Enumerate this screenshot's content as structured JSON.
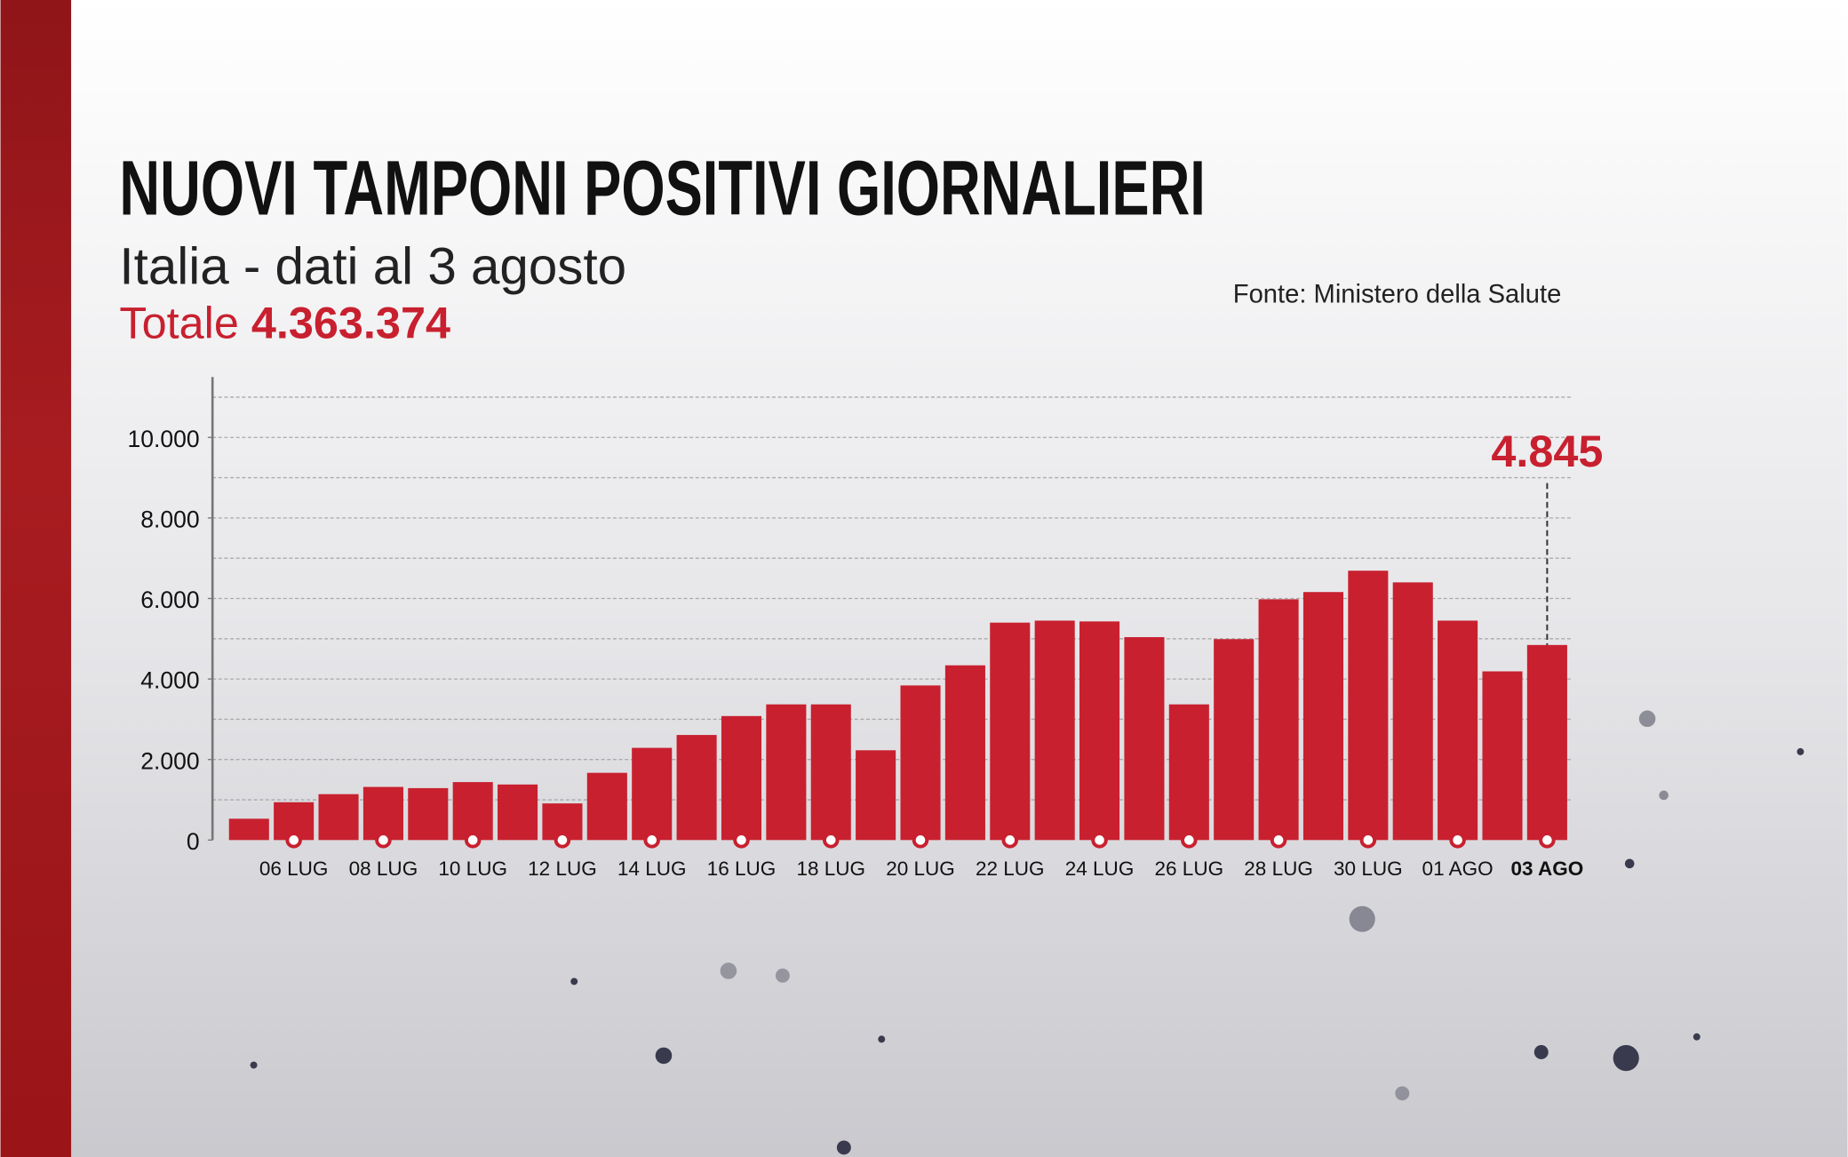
{
  "chart_data": {
    "type": "bar",
    "title": "NUOVI TAMPONI POSITIVI GIORNALIERI",
    "subtitle": "Italia - dati al 3 agosto",
    "total_label": "Totale",
    "total_value": "4.363.374",
    "source": "Fonte: Ministero della Salute",
    "categories": [
      null,
      "06 LUG",
      null,
      "08 LUG",
      null,
      "10 LUG",
      null,
      "12 LUG",
      null,
      "14 LUG",
      null,
      "16 LUG",
      null,
      "18 LUG",
      null,
      "20 LUG",
      null,
      "22 LUG",
      null,
      "24 LUG",
      null,
      "26 LUG",
      null,
      "28 LUG",
      null,
      "30 LUG",
      null,
      "01 AGO",
      null,
      "03 AGO"
    ],
    "values": [
      530,
      940,
      1140,
      1320,
      1290,
      1440,
      1380,
      910,
      1670,
      2290,
      2610,
      3080,
      3370,
      3370,
      2230,
      3840,
      4340,
      5400,
      5450,
      5430,
      5040,
      3370,
      4990,
      5980,
      6160,
      6690,
      6400,
      5450,
      4190,
      4845
    ],
    "value_labels": [
      null,
      null,
      null,
      null,
      null,
      null,
      null,
      null,
      null,
      null,
      null,
      null,
      null,
      null,
      null,
      null,
      null,
      null,
      null,
      null,
      null,
      null,
      null,
      null,
      null,
      null,
      null,
      null,
      null,
      "4.845"
    ],
    "color": "#c8202f",
    "ylim": [
      0,
      11500
    ],
    "yticks": [
      0,
      {
        "value": 2000,
        "label": "2.000"
      },
      {
        "value": 4000,
        "label": "4.000"
      },
      {
        "value": 6000,
        "label": "6.000"
      },
      {
        "value": 8000,
        "label": "8.000"
      },
      {
        "value": 10000,
        "label": "10.000"
      }
    ],
    "minor_yticks": [
      1000,
      2000,
      3000,
      4000,
      5000,
      6000,
      7000,
      8000,
      9000,
      10000,
      11000
    ],
    "grid": true
  }
}
